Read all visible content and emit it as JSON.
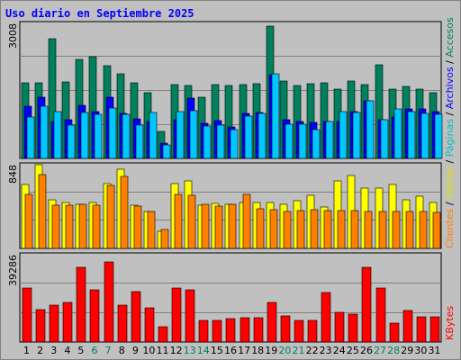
{
  "chart_data": {
    "type": "bar",
    "title": "Uso diario en Septiembre 2025",
    "categories": [
      "1",
      "2",
      "3",
      "4",
      "5",
      "6",
      "7",
      "8",
      "9",
      "10",
      "11",
      "12",
      "13",
      "14",
      "15",
      "16",
      "17",
      "18",
      "19",
      "20",
      "21",
      "22",
      "23",
      "24",
      "25",
      "26",
      "27",
      "28",
      "29",
      "30",
      "31"
    ],
    "weekend_days": [
      "6",
      "7",
      "13",
      "14",
      "20",
      "21",
      "27",
      "28"
    ],
    "panels": [
      {
        "ylabel_max": "3008",
        "ymax": 3008,
        "series": [
          {
            "name": "Accesos",
            "color": "#00805c",
            "values": [
              1685,
              1685,
              2658,
              1707,
              2202,
              2270,
              2074,
              1877,
              1685,
              1465,
              610,
              1640,
              1617,
              1370,
              1640,
              1617,
              1640,
              1662,
              2948,
              1730,
              1617,
              1663,
              1685,
              1550,
              1730,
              1640,
              2094,
              1550,
              1595,
              1550,
              1460
            ]
          },
          {
            "name": "Archivos",
            "color": "#0000ff",
            "values": [
              1171,
              1358,
              831,
              855,
              1188,
              1050,
              1359,
              1004,
              880,
              825,
              338,
              870,
              1343,
              780,
              847,
              707,
              1004,
              1013,
              1865,
              861,
              832,
              796,
              814,
              825,
              1050,
              1290,
              871,
              932,
              1103,
              1104,
              1050
            ]
          },
          {
            "name": "Páginas",
            "color": "#00c8ff",
            "values": [
              915,
              1171,
              1033,
              737,
              1015,
              983,
              1113,
              976,
              741,
              1014,
              306,
              1048,
              1071,
              726,
              746,
              642,
              936,
              999,
              1882,
              760,
              760,
              650,
              818,
              1050,
              1013,
              1280,
              861,
              1103,
              1050,
              996,
              980
            ]
          }
        ]
      },
      {
        "ylabel_max": "848",
        "ymax": 848,
        "series": [
          {
            "name": "Visitas",
            "color": "#ffff00",
            "values": [
              648,
              848,
              493,
              465,
              443,
              465,
              652,
              798,
              435,
              375,
              176,
              660,
              680,
              440,
              452,
              445,
              466,
              464,
              465,
              445,
              484,
              537,
              420,
              685,
              735,
              610,
              615,
              650,
              490,
              525,
              464
            ]
          },
          {
            "name": "Clientes",
            "color": "#ff8000",
            "values": [
              545,
              752,
              439,
              437,
              447,
              442,
              635,
              725,
              426,
              375,
              188,
              548,
              537,
              447,
              424,
              444,
              545,
              403,
              391,
              377,
              385,
              389,
              386,
              383,
              380,
              378,
              376,
              374,
              372,
              370,
              368
            ]
          }
        ]
      },
      {
        "ylabel_max": "39286",
        "ymax": 39286,
        "series": [
          {
            "name": "KBytes",
            "color": "#ff0000",
            "values": [
              24240,
              14440,
              16740,
              17680,
              33630,
              23300,
              36100,
              16740,
              22610,
              15300,
              6700,
              24240,
              23300,
              9810,
              9810,
              10620,
              10760,
              10760,
              17680,
              11640,
              9780,
              9810,
              22150,
              13540,
              12500,
              33500,
              24240,
              8360,
              14020,
              11180,
              11180
            ]
          }
        ]
      }
    ],
    "legend_right": {
      "panel1": [
        "Accesos",
        "Archivos",
        "Páginas",
        "Visitas",
        "Clientes"
      ],
      "panel3": [
        "KBytes"
      ],
      "separator": "/"
    }
  }
}
